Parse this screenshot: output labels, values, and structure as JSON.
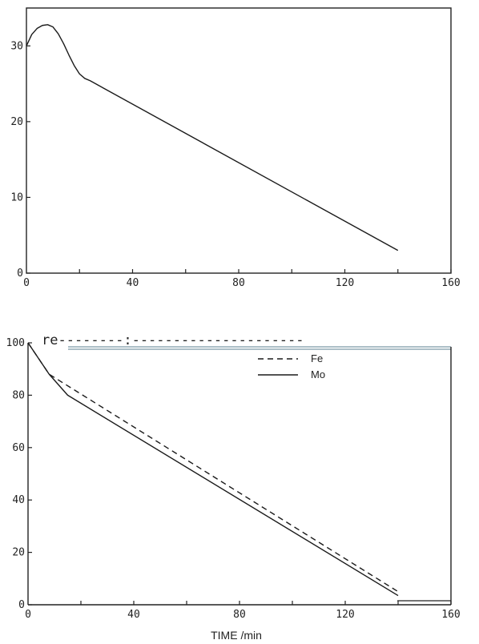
{
  "chart_data": [
    {
      "type": "line",
      "xlim": [
        0,
        160
      ],
      "ylim": [
        0,
        35
      ],
      "x_ticks": [
        "0",
        "40",
        "80",
        "120",
        "160"
      ],
      "y_ticks": [
        "0",
        "10",
        "20",
        "30"
      ],
      "grid": false,
      "series": [
        {
          "x": [
            0,
            2,
            4,
            6,
            8,
            10,
            12,
            14,
            16,
            18,
            20,
            22,
            24,
            140
          ],
          "y": [
            30,
            31.5,
            32.3,
            32.7,
            32.8,
            32.5,
            31.6,
            30.3,
            28.8,
            27.4,
            26.3,
            25.7,
            25.4,
            3
          ]
        }
      ]
    },
    {
      "type": "line",
      "xlim": [
        0,
        160
      ],
      "ylim": [
        0,
        100
      ],
      "x_ticks": [
        "0",
        "40",
        "80",
        "120",
        "160"
      ],
      "y_ticks": [
        "0",
        "20",
        "40",
        "60",
        "80",
        "100"
      ],
      "xlabel": "TIME /min",
      "grid": false,
      "legend": "top-center",
      "top_note": "re--------:---------------------",
      "series": [
        {
          "name": "Fe",
          "style": "dashed",
          "x": [
            0,
            8,
            140
          ],
          "y": [
            100,
            88,
            5
          ]
        },
        {
          "name": "Mo",
          "style": "solid",
          "x": [
            0,
            8,
            15,
            140
          ],
          "y": [
            100,
            88,
            80,
            3.5
          ]
        }
      ]
    }
  ]
}
